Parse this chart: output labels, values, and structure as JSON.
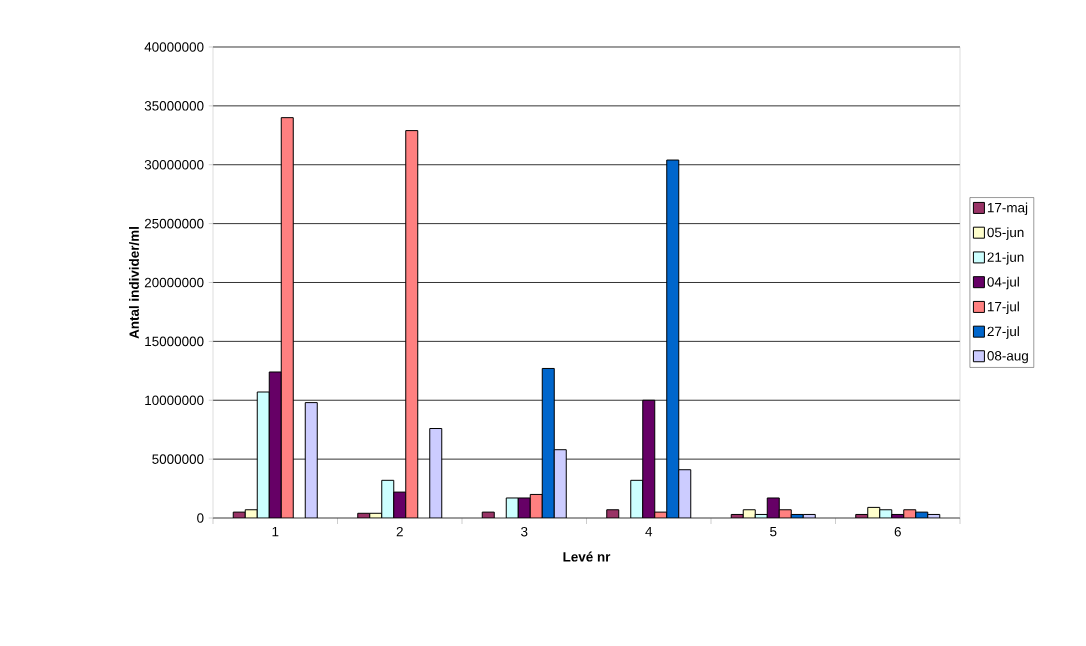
{
  "chart_data": {
    "type": "bar",
    "xlabel": "Levé nr",
    "ylabel": "Antal individer/ml",
    "categories": [
      "1",
      "2",
      "3",
      "4",
      "5",
      "6"
    ],
    "series": [
      {
        "name": "17-maj",
        "color": "#993366",
        "values": [
          500000,
          400000,
          500000,
          700000,
          300000,
          300000
        ]
      },
      {
        "name": "05-jun",
        "color": "#ffffcc",
        "values": [
          700000,
          400000,
          null,
          null,
          700000,
          900000
        ]
      },
      {
        "name": "21-jun",
        "color": "#ccffff",
        "values": [
          10700000,
          3200000,
          1700000,
          3200000,
          300000,
          700000
        ]
      },
      {
        "name": "04-jul",
        "color": "#660066",
        "values": [
          12400000,
          2200000,
          1700000,
          10000000,
          1700000,
          300000
        ]
      },
      {
        "name": "17-jul",
        "color": "#ff8080",
        "values": [
          34000000,
          32900000,
          2000000,
          500000,
          700000,
          700000
        ]
      },
      {
        "name": "27-jul",
        "color": "#0066cc",
        "values": [
          null,
          null,
          12700000,
          30400000,
          300000,
          500000
        ]
      },
      {
        "name": "08-aug",
        "color": "#ccccff",
        "values": [
          9800000,
          7600000,
          5800000,
          4100000,
          300000,
          300000
        ]
      }
    ],
    "ylim": [
      0,
      40000000
    ],
    "yticks": [
      0,
      5000000,
      10000000,
      15000000,
      20000000,
      25000000,
      30000000,
      35000000,
      40000000
    ],
    "grid": "y",
    "legend": "right"
  }
}
